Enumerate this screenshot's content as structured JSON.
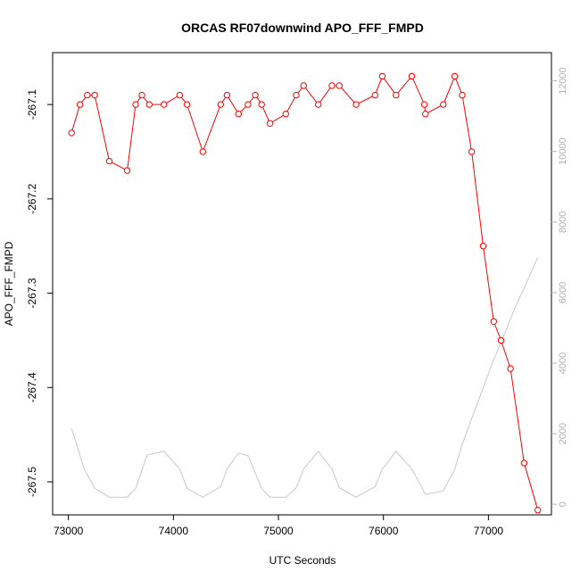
{
  "chart_data": {
    "type": "line",
    "title": "ORCAS RF07downwind APO_FFF_FMPD",
    "xlabel": "UTC Seconds",
    "ylabel": "APO_FFF_FMPD",
    "xlim": [
      72850,
      77600
    ],
    "ylim": [
      -267.535,
      -267.045
    ],
    "y2lim": [
      -300,
      12800
    ],
    "x_ticks": [
      73000,
      74000,
      75000,
      76000,
      77000
    ],
    "y_ticks": [
      -267.1,
      -267.2,
      -267.3,
      -267.4,
      -267.5
    ],
    "y_tick_labels": [
      "-267.1",
      "-267.2",
      "-267.3",
      "-267.4",
      "-267.5"
    ],
    "y2_ticks": [
      0,
      2000,
      4000,
      6000,
      8000,
      10000,
      12000
    ],
    "colors": {
      "primary": "#ff0000",
      "secondary": "#c8c8c8",
      "axis": "#000000",
      "right_axis": "#b0b0b0"
    },
    "series": [
      {
        "axis": "left",
        "style": "line+circles",
        "color": "#ff0000",
        "x": [
          73030,
          73110,
          73180,
          73250,
          73390,
          73560,
          73640,
          73700,
          73770,
          73910,
          74060,
          74130,
          74280,
          74450,
          74510,
          74620,
          74710,
          74780,
          74840,
          74920,
          75070,
          75170,
          75240,
          75380,
          75510,
          75580,
          75740,
          75920,
          75990,
          76120,
          76270,
          76390,
          76400,
          76570,
          76680,
          76750,
          76840,
          76950,
          77050,
          77120,
          77210,
          77340,
          77470
        ],
        "y": [
          -267.13,
          -267.1,
          -267.09,
          -267.09,
          -267.16,
          -267.17,
          -267.1,
          -267.09,
          -267.1,
          -267.1,
          -267.09,
          -267.1,
          -267.15,
          -267.1,
          -267.09,
          -267.11,
          -267.1,
          -267.09,
          -267.1,
          -267.12,
          -267.11,
          -267.09,
          -267.08,
          -267.1,
          -267.08,
          -267.08,
          -267.1,
          -267.09,
          -267.07,
          -267.09,
          -267.07,
          -267.1,
          -267.11,
          -267.1,
          -267.07,
          -267.09,
          -267.15,
          -267.25,
          -267.33,
          -267.35,
          -267.38,
          -267.48,
          -267.53
        ]
      },
      {
        "axis": "right",
        "style": "line",
        "color": "#c8c8c8",
        "x": [
          73030,
          73150,
          73250,
          73390,
          73560,
          73640,
          73750,
          73910,
          74060,
          74130,
          74280,
          74450,
          74510,
          74620,
          74710,
          74840,
          74920,
          75070,
          75170,
          75240,
          75380,
          75510,
          75580,
          75740,
          75920,
          75990,
          76120,
          76270,
          76400,
          76570,
          76680,
          76750,
          76850,
          76950,
          77050,
          77150,
          77250,
          77350,
          77470
        ],
        "y": [
          2150,
          1000,
          450,
          200,
          200,
          450,
          1400,
          1500,
          1000,
          450,
          200,
          500,
          1000,
          1450,
          1380,
          450,
          200,
          200,
          470,
          1000,
          1500,
          1000,
          470,
          200,
          500,
          1000,
          1500,
          1000,
          280,
          380,
          1000,
          1700,
          2500,
          3300,
          4100,
          4800,
          5550,
          6200,
          7000
        ]
      }
    ]
  }
}
